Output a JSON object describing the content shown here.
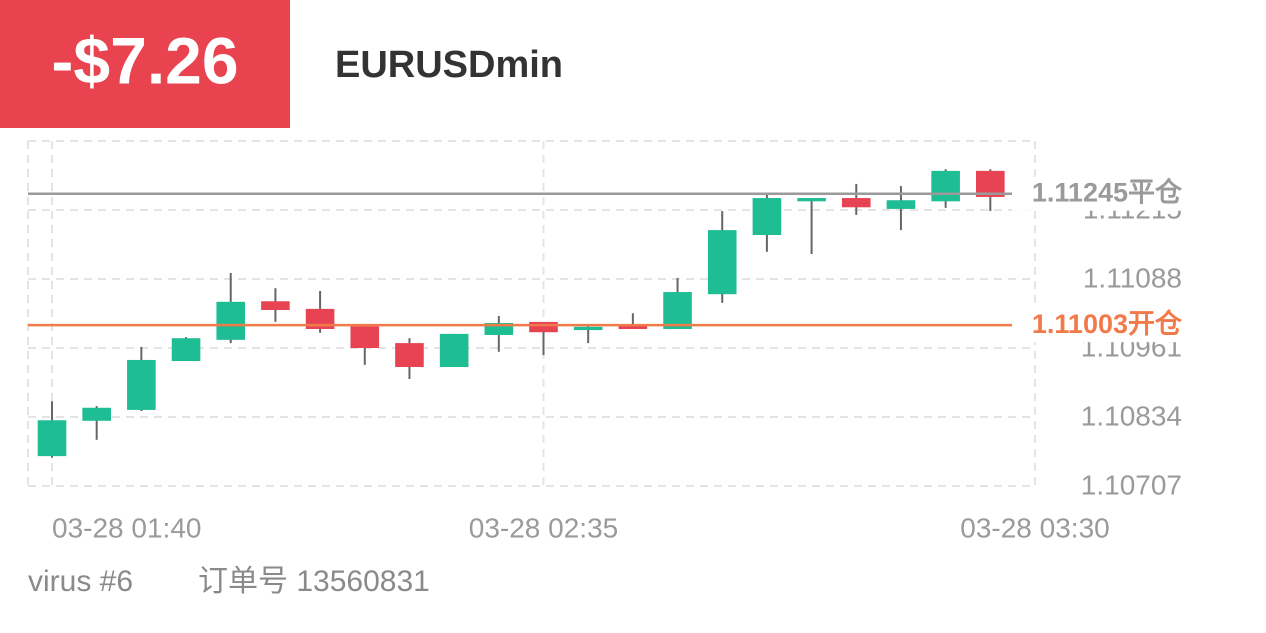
{
  "header": {
    "pnl": "-$7.26",
    "symbol": "EURUSDmin"
  },
  "chart_data": {
    "type": "candlestick",
    "up_color": "#1fbd93",
    "down_color": "#e84352",
    "wick_color": "#666666",
    "xlim": [
      0,
      22
    ],
    "xticks": [
      {
        "value": 0,
        "label": "03-28 01:40"
      },
      {
        "value": 11,
        "label": "03-28 02:35"
      },
      {
        "value": 22,
        "label": "03-28 03:30"
      }
    ],
    "ylim": [
      1.10707,
      1.11342
    ],
    "yticks": [
      1.10707,
      1.10834,
      1.10961,
      1.11088,
      1.11215
    ],
    "grid": true,
    "open": [
      1.10762,
      1.10827,
      1.10847,
      1.10937,
      1.10976,
      1.11047,
      1.11033,
      1.11001,
      1.1097,
      1.10926,
      1.10985,
      1.11009,
      1.10994,
      1.11003,
      1.10996,
      1.1106,
      1.11169,
      1.11231,
      1.11237,
      1.11217,
      1.11231,
      1.11287
    ],
    "high": [
      1.10863,
      1.10854,
      1.10963,
      1.10981,
      1.11099,
      1.11071,
      1.11066,
      1.11001,
      1.10979,
      1.10987,
      1.1102,
      1.11009,
      1.11005,
      1.11025,
      1.1109,
      1.11213,
      1.11246,
      1.11237,
      1.11263,
      1.11259,
      1.1129,
      1.1129
    ],
    "low": [
      1.10759,
      1.10792,
      1.10845,
      1.10937,
      1.1097,
      1.11009,
      1.10989,
      1.1093,
      1.10904,
      1.10926,
      1.10954,
      1.10948,
      1.1097,
      1.10996,
      1.10996,
      1.11044,
      1.11138,
      1.11134,
      1.11206,
      1.11178,
      1.11219,
      1.11213
    ],
    "close": [
      1.10828,
      1.10851,
      1.10939,
      1.10979,
      1.11046,
      1.11031,
      1.10996,
      1.10961,
      1.10926,
      1.10987,
      1.11007,
      1.1099,
      1.11,
      1.10996,
      1.11064,
      1.11178,
      1.11237,
      1.11237,
      1.1122,
      1.11233,
      1.11287,
      1.11239
    ],
    "lines": [
      {
        "value": 1.11245,
        "label": "平仓",
        "color": "#9a9a9a"
      },
      {
        "value": 1.11003,
        "label": "开仓",
        "color": "#f27a4a"
      }
    ]
  },
  "footer": {
    "account": "virus #6",
    "order": "订单号 13560831"
  }
}
